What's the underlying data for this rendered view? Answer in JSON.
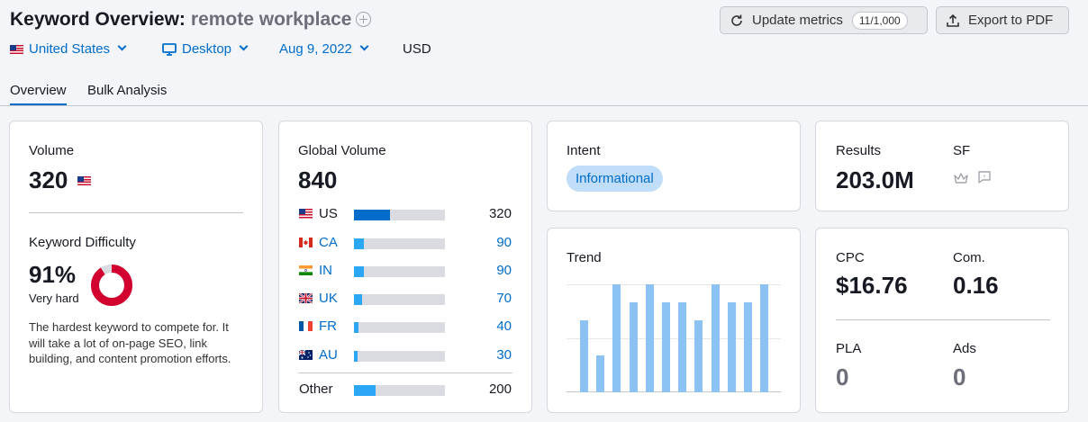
{
  "header": {
    "title": "Keyword Overview:",
    "keyword": "remote workplace",
    "update_label": "Update metrics",
    "update_counter": "11/1,000",
    "export_label": "Export to PDF"
  },
  "filters": {
    "country": "United States",
    "device": "Desktop",
    "date": "Aug 9, 2022",
    "currency": "USD"
  },
  "tabs": [
    "Overview",
    "Bulk Analysis"
  ],
  "volume": {
    "label": "Volume",
    "value": "320"
  },
  "difficulty": {
    "label": "Keyword Difficulty",
    "value": "91%",
    "percent": 91,
    "rating": "Very hard",
    "description": "The hardest keyword to compete for. It will take a lot of on-page SEO, link building, and content promotion efforts.",
    "color": "#d1002f"
  },
  "global_volume": {
    "label": "Global Volume",
    "value": "840",
    "rows": [
      {
        "code": "US",
        "value": "320",
        "share": 0.4
      },
      {
        "code": "CA",
        "value": "90",
        "share": 0.11
      },
      {
        "code": "IN",
        "value": "90",
        "share": 0.11
      },
      {
        "code": "UK",
        "value": "70",
        "share": 0.09
      },
      {
        "code": "FR",
        "value": "40",
        "share": 0.05
      },
      {
        "code": "AU",
        "value": "30",
        "share": 0.04
      }
    ],
    "other_label": "Other",
    "other_value": "200",
    "other_share": 0.24
  },
  "intent": {
    "label": "Intent",
    "value": "Informational"
  },
  "results": {
    "label": "Results",
    "value": "203.0M"
  },
  "sf": {
    "label": "SF"
  },
  "trend": {
    "label": "Trend",
    "values": [
      0.67,
      0.34,
      1.0,
      0.83,
      1.0,
      0.83,
      0.83,
      0.67,
      1.0,
      0.83,
      0.83,
      1.0
    ]
  },
  "cpc": {
    "label": "CPC",
    "value": "$16.76"
  },
  "com": {
    "label": "Com.",
    "value": "0.16"
  },
  "pla": {
    "label": "PLA",
    "value": "0"
  },
  "ads": {
    "label": "Ads",
    "value": "0"
  },
  "colors": {
    "accent": "#006dca",
    "us_bar": "#006dca",
    "country_bar": "#2ba7f5",
    "trend_bar": "#8dc3f4",
    "intent_pill": "#c0ddf9"
  }
}
